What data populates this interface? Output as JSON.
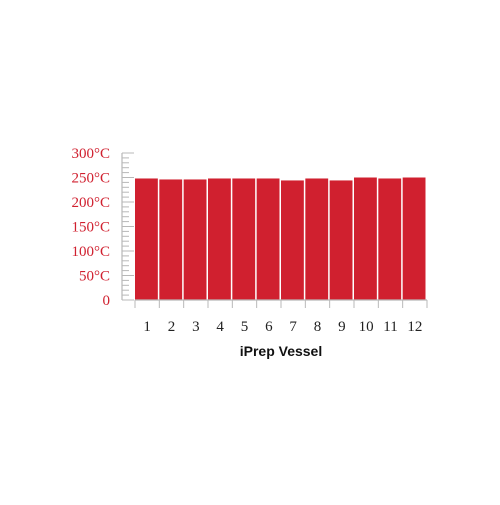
{
  "chart_data": {
    "type": "bar",
    "categories": [
      "1",
      "2",
      "3",
      "4",
      "5",
      "6",
      "7",
      "8",
      "9",
      "10",
      "11",
      "12"
    ],
    "values": [
      248,
      246,
      246,
      248,
      248,
      248,
      244,
      248,
      244,
      250,
      248,
      250
    ],
    "title": "",
    "xlabel": "iPrep Vessel",
    "ylabel": "",
    "ylim": [
      0,
      300
    ],
    "yticks": [
      {
        "value": 0,
        "label": "0"
      },
      {
        "value": 50,
        "label": "50°C"
      },
      {
        "value": 100,
        "label": "100°C"
      },
      {
        "value": 150,
        "label": "150°C"
      },
      {
        "value": 200,
        "label": "200°C"
      },
      {
        "value": 250,
        "label": "250°C"
      },
      {
        "value": 300,
        "label": "300°C"
      }
    ],
    "minor_tick_step": 10,
    "grid": false,
    "legend": "none"
  },
  "colors": {
    "bar": "#d0202f",
    "ytick_text": "#d0202f",
    "axis": "#b8b8b8",
    "bar_separator": "#ffffff"
  }
}
